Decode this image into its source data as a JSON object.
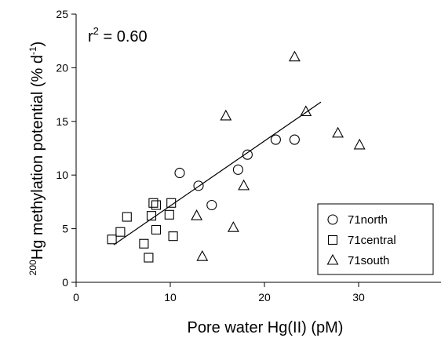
{
  "chart_data": {
    "type": "scatter",
    "xlabel": "Pore water Hg(II) (pM)",
    "ylabel": {
      "superscript": "200",
      "text": "Hg methylation potential (% d",
      "exponent": "-1",
      "close": ")"
    },
    "annotation": {
      "text": "r",
      "exponent": "2",
      "rest": " = 0.60"
    },
    "xlim": [
      0,
      40
    ],
    "ylim": [
      0,
      25
    ],
    "xticks": [
      0,
      10,
      20,
      30,
      40
    ],
    "yticks": [
      0,
      5,
      10,
      15,
      20,
      25
    ],
    "grid": false,
    "legend_position": "bottom-right",
    "series": [
      {
        "name": "71north",
        "marker": "circle",
        "points": [
          [
            11.0,
            10.2
          ],
          [
            13.0,
            9.0
          ],
          [
            14.4,
            7.2
          ],
          [
            17.2,
            10.5
          ],
          [
            18.2,
            11.9
          ],
          [
            21.2,
            13.3
          ],
          [
            23.2,
            13.3
          ]
        ]
      },
      {
        "name": "71central",
        "marker": "square",
        "points": [
          [
            3.8,
            4.0
          ],
          [
            4.7,
            4.7
          ],
          [
            5.4,
            6.1
          ],
          [
            7.2,
            3.6
          ],
          [
            7.7,
            2.3
          ],
          [
            8.0,
            6.2
          ],
          [
            8.2,
            7.4
          ],
          [
            8.5,
            7.2
          ],
          [
            8.5,
            4.9
          ],
          [
            9.9,
            6.3
          ],
          [
            10.1,
            7.4
          ],
          [
            10.3,
            4.3
          ]
        ]
      },
      {
        "name": "71south",
        "marker": "triangle",
        "points": [
          [
            13.4,
            2.4
          ],
          [
            15.9,
            15.5
          ],
          [
            16.7,
            5.1
          ],
          [
            17.8,
            9.0
          ],
          [
            12.8,
            6.2
          ],
          [
            23.2,
            21.0
          ],
          [
            24.4,
            15.9
          ],
          [
            27.8,
            13.9
          ],
          [
            30.1,
            12.8
          ]
        ]
      }
    ],
    "regression_line": {
      "x": [
        4.0,
        26.0
      ],
      "y": [
        3.5,
        16.8
      ]
    }
  }
}
